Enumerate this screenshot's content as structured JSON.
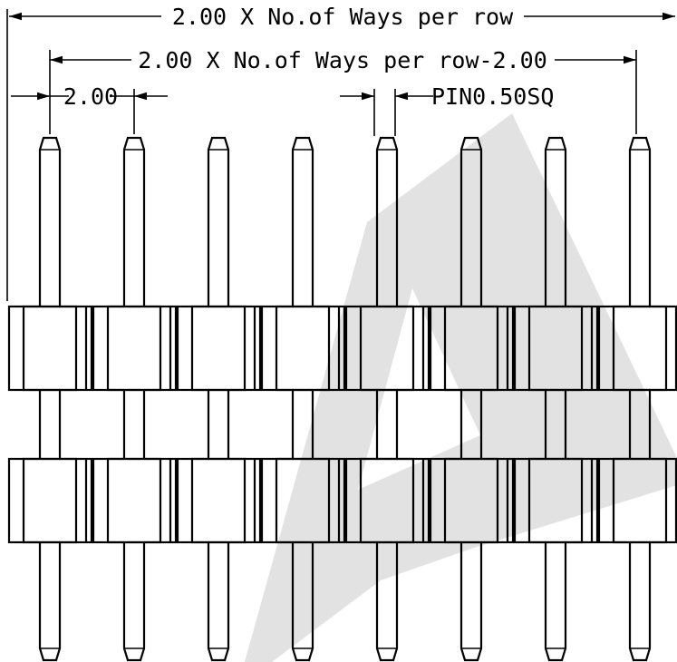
{
  "drawing": {
    "dimensions": {
      "overall_width": "2.00 X No.of Ways per row",
      "outer_pin_span": "2.00 X No.of Ways per row-2.00",
      "pitch": "2.00",
      "pin_size": "PIN0.50SQ"
    },
    "pin_count": 8,
    "rows": 2,
    "watermark": "A",
    "colors": {
      "line": "#000000",
      "watermark": "#e2e2e2",
      "background": "#ffffff"
    }
  }
}
